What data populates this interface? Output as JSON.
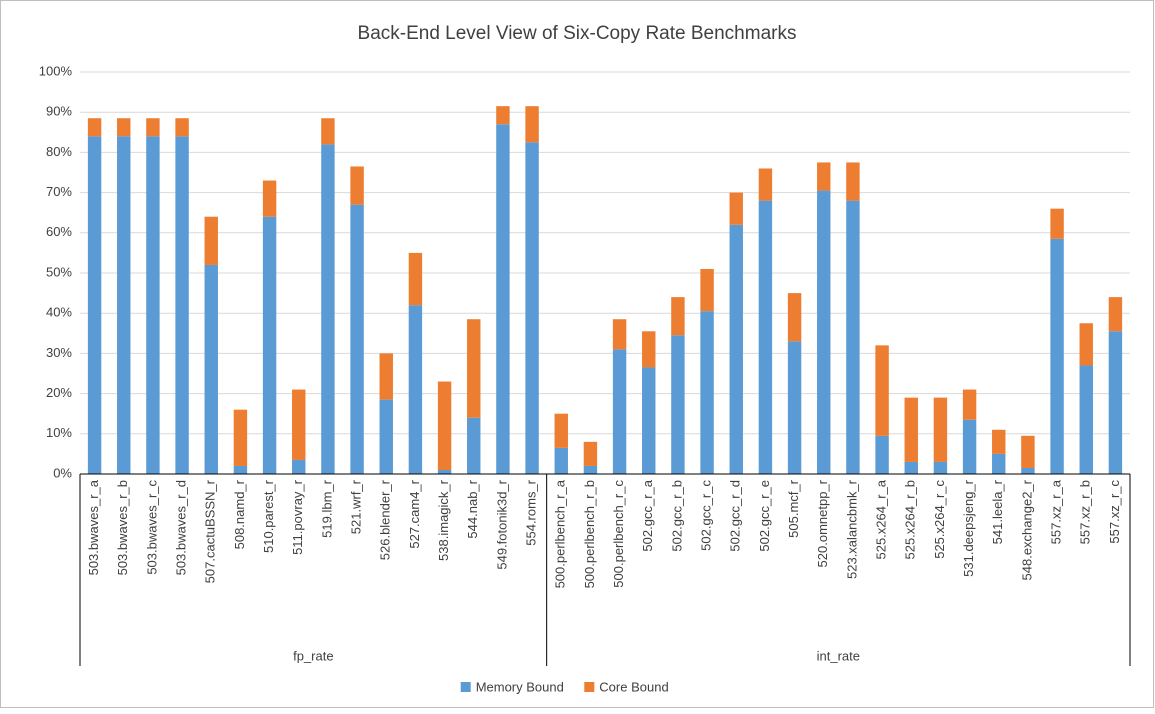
{
  "chart_data": {
    "type": "bar",
    "stacked": true,
    "title": "Back-End Level View of Six-Copy Rate Benchmarks",
    "categories": [
      "503.bwaves_r_a",
      "503.bwaves_r_b",
      "503.bwaves_r_c",
      "503.bwaves_r_d",
      "507.cactuBSSN_r",
      "508.namd_r",
      "510.parest_r",
      "511.povray_r",
      "519.lbm_r",
      "521.wrf_r",
      "526.blender_r",
      "527.cam4_r",
      "538.imagick_r",
      "544.nab_r",
      "549.fotonik3d_r",
      "554.roms_r",
      "500.perlbench_r_a",
      "500.perlbench_r_b",
      "500.perlbench_r_c",
      "502.gcc_r_a",
      "502.gcc_r_b",
      "502.gcc_r_c",
      "502.gcc_r_d",
      "502.gcc_r_e",
      "505.mcf_r",
      "520.omnetpp_r",
      "523.xalancbmk_r",
      "525.x264_r_a",
      "525.x264_r_b",
      "525.x264_r_c",
      "531.deepsjeng_r",
      "541.leela_r",
      "548.exchange2_r",
      "557.xz_r_a",
      "557.xz_r_b",
      "557.xz_r_c"
    ],
    "groups": [
      {
        "label": "fp_rate",
        "size": 16
      },
      {
        "label": "int_rate",
        "size": 20
      }
    ],
    "series": [
      {
        "name": "Memory Bound",
        "color": "#5b9bd5",
        "values": [
          84,
          84,
          84,
          84,
          52,
          2,
          64,
          3.5,
          82,
          67,
          18.5,
          42,
          1,
          14,
          87,
          82.5,
          6.5,
          2,
          31,
          26.5,
          34.5,
          40.5,
          62,
          68,
          33,
          70.5,
          68,
          9.5,
          3,
          3,
          13.5,
          5,
          1.5,
          58.5,
          27,
          35.5
        ]
      },
      {
        "name": "Core Bound",
        "color": "#ed7d31",
        "values": [
          4.5,
          4.5,
          4.5,
          4.5,
          12,
          14,
          9,
          17.5,
          6.5,
          9.5,
          11.5,
          13,
          22,
          24.5,
          4.5,
          9,
          8.5,
          6,
          7.5,
          9,
          9.5,
          10.5,
          8,
          8,
          12,
          7,
          9.5,
          22.5,
          16,
          16,
          7.5,
          6,
          8,
          7.5,
          10.5,
          8.5
        ]
      }
    ],
    "ylim": [
      0,
      100
    ],
    "yticks": [
      {
        "value": 0,
        "label": "0%"
      },
      {
        "value": 10,
        "label": "10%"
      },
      {
        "value": 20,
        "label": "20%"
      },
      {
        "value": 30,
        "label": "30%"
      },
      {
        "value": 40,
        "label": "40%"
      },
      {
        "value": 50,
        "label": "50%"
      },
      {
        "value": 60,
        "label": "60%"
      },
      {
        "value": 70,
        "label": "70%"
      },
      {
        "value": 80,
        "label": "80%"
      },
      {
        "value": 90,
        "label": "90%"
      },
      {
        "value": 100,
        "label": "100%"
      }
    ],
    "grid": true,
    "legend": "bottom"
  }
}
